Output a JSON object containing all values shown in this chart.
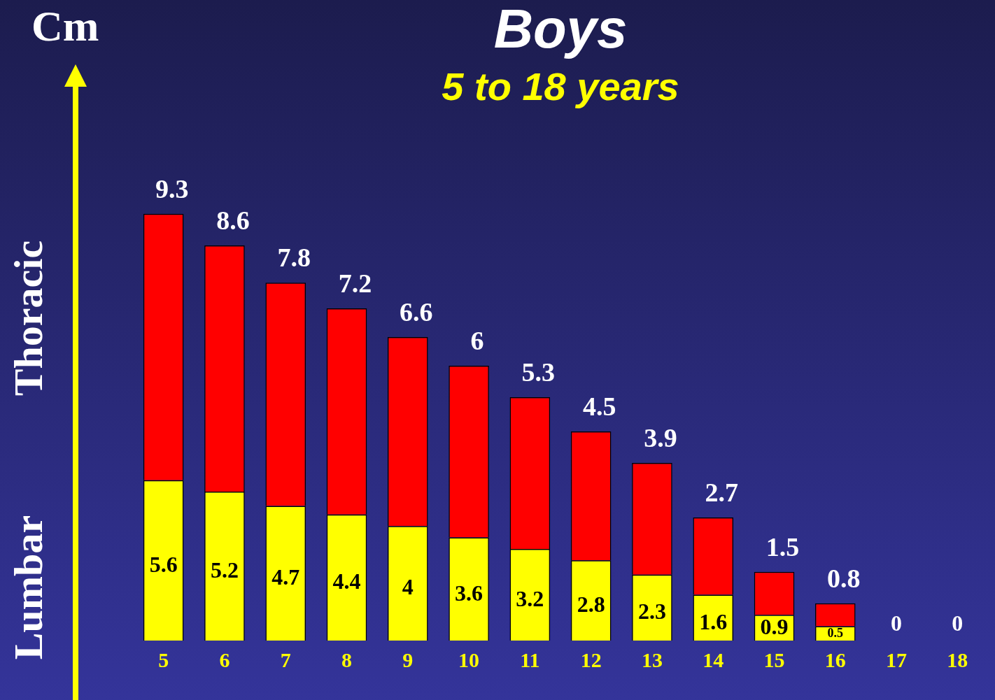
{
  "chart_data": {
    "type": "bar",
    "title": "Boys",
    "subtitle": "5 to 18 years",
    "ylabel": "Cm",
    "stacked": true,
    "legend": false,
    "grid": false,
    "categories": [
      "5",
      "6",
      "7",
      "8",
      "9",
      "10",
      "11",
      "12",
      "13",
      "14",
      "15",
      "16",
      "17",
      "18"
    ],
    "series": [
      {
        "name": "Lumbar",
        "color": "#ffff00",
        "values": [
          5.6,
          5.2,
          4.7,
          4.4,
          4,
          3.6,
          3.2,
          2.8,
          2.3,
          1.6,
          0.9,
          0.5,
          0,
          0
        ],
        "value_labels": [
          "5.6",
          "5.2",
          "4.7",
          "4.4",
          "4",
          "3.6",
          "3.2",
          "2.8",
          "2.3",
          "1.6",
          "0.9",
          "0.5",
          "0",
          "0"
        ]
      },
      {
        "name": "Thoracic",
        "color": "#ff0000",
        "values": [
          9.3,
          8.6,
          7.8,
          7.2,
          6.6,
          6,
          5.3,
          4.5,
          3.9,
          2.7,
          1.5,
          0.8,
          0,
          0
        ],
        "value_labels": [
          "9.3",
          "8.6",
          "7.8",
          "7.2",
          "6.6",
          "6",
          "5.3",
          "4.5",
          "3.9",
          "2.7",
          "1.5",
          "0.8",
          null,
          null
        ]
      }
    ]
  }
}
